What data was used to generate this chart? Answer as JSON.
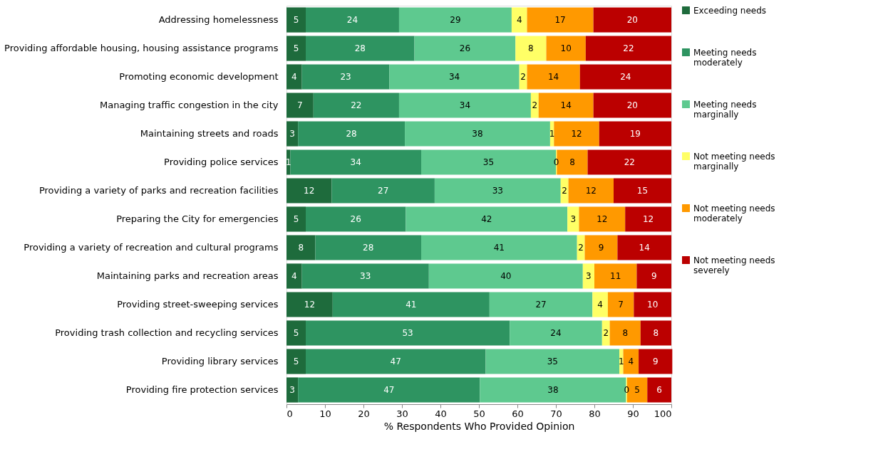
{
  "chart_data": {
    "type": "bar",
    "orientation": "horizontal",
    "stacked": true,
    "xlabel": "% Respondents Who Provided Opinion",
    "xlim": [
      0,
      100
    ],
    "xticks": [
      0,
      10,
      20,
      30,
      40,
      50,
      60,
      70,
      80,
      90,
      100
    ],
    "grid": false,
    "legend": "right",
    "categories": [
      "Addressing homelessness",
      "Providing affordable housing, housing assistance programs",
      "Promoting economic development",
      "Managing traffic congestion in the city",
      "Maintaining streets and roads",
      "Providing police services",
      "Providing a variety of parks and recreation facilities",
      "Preparing the City for emergencies",
      "Providing a variety of recreation and cultural programs",
      "Maintaining parks and recreation areas",
      "Providing street-sweeping services",
      "Providing trash collection and recycling services",
      "Providing library services",
      "Providing fire protection services"
    ],
    "series": [
      {
        "name": "Exceeding needs",
        "color": "#1e6b3c",
        "values": [
          5,
          5,
          4,
          7,
          3,
          1,
          11.75,
          5,
          7.5,
          4,
          12,
          5,
          5,
          3
        ],
        "value_labels": [
          "5",
          "5",
          "4",
          "7",
          "3",
          "1",
          "12",
          "5",
          "8",
          "4",
          "12",
          "5",
          "5",
          "3"
        ]
      },
      {
        "name": "Meeting needs moderately",
        "color": "#2e9461",
        "values": [
          24.25,
          28.25,
          22.75,
          22.25,
          27.75,
          34,
          26.75,
          26,
          27.5,
          33,
          40.75,
          53,
          46.75,
          47.25
        ],
        "value_labels": [
          "24",
          "28",
          "23",
          "22",
          "28",
          "34",
          "27",
          "26",
          "28",
          "33",
          "41",
          "53",
          "47",
          "47"
        ]
      },
      {
        "name": "Meeting needs marginally",
        "color": "#5ec98f",
        "values": [
          29.25,
          26.25,
          33.75,
          34.25,
          37.75,
          35,
          32.75,
          42,
          40.5,
          40,
          26.75,
          24,
          34.75,
          38
        ],
        "value_labels": [
          "29",
          "26",
          "34",
          "34",
          "38",
          "35",
          "33",
          "42",
          "41",
          "40",
          "27",
          "24",
          "35",
          "38"
        ]
      },
      {
        "name": "Not meeting needs marginally",
        "color": "#ffff66",
        "values": [
          4,
          8,
          2,
          2,
          1,
          0.25,
          2,
          3,
          2,
          3,
          4,
          2,
          1,
          0.25
        ],
        "value_labels": [
          "4",
          "8",
          "2",
          "2",
          "1",
          "0",
          "2",
          "3",
          "2",
          "3",
          "4",
          "2",
          "1",
          "0"
        ]
      },
      {
        "name": "Not meeting needs moderately",
        "color": "#ff9900",
        "values": [
          17.25,
          10.25,
          13.75,
          14.25,
          11.75,
          8,
          11.75,
          12,
          8.5,
          11,
          6.75,
          8,
          4,
          5.25
        ],
        "value_labels": [
          "17",
          "10",
          "14",
          "14",
          "12",
          "8",
          "12",
          "12",
          "9",
          "11",
          "7",
          "8",
          "4",
          "5"
        ]
      },
      {
        "name": "Not meeting needs severely",
        "color": "#bb0000",
        "values": [
          20.25,
          22.25,
          23.75,
          20.25,
          18.75,
          21.75,
          15,
          12,
          14,
          9,
          9.75,
          8,
          8.75,
          6.25
        ],
        "value_labels": [
          "20",
          "22",
          "24",
          "20",
          "19",
          "22",
          "15",
          "12",
          "14",
          "9",
          "10",
          "8",
          "9",
          "6"
        ]
      }
    ]
  }
}
